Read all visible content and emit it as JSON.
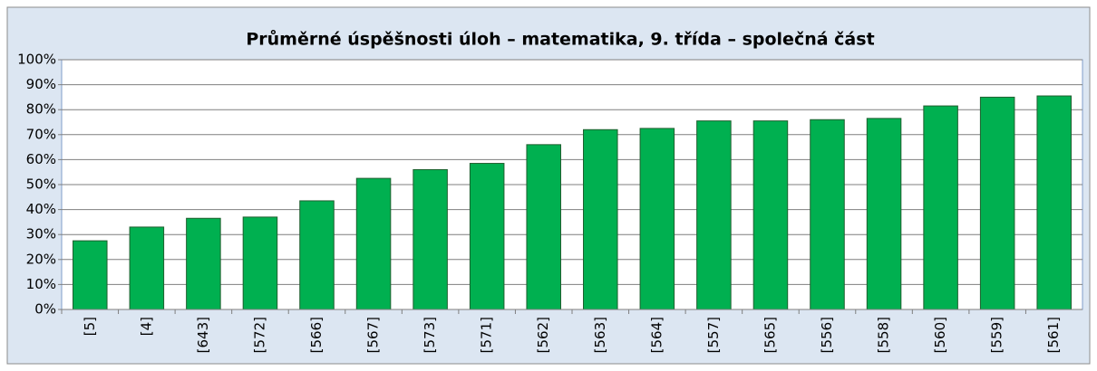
{
  "chart_data": {
    "type": "bar",
    "title": "Průměrné úspěšnosti úloh – matematika, 9. třída – společná část",
    "categories": [
      "[5]",
      "[4]",
      "[643]",
      "[572]",
      "[566]",
      "[567]",
      "[573]",
      "[571]",
      "[562]",
      "[563]",
      "[564]",
      "[557]",
      "[565]",
      "[556]",
      "[558]",
      "[560]",
      "[559]",
      "[561]"
    ],
    "values": [
      27.5,
      33,
      36.5,
      37,
      43.5,
      52.5,
      56,
      58.5,
      66,
      72,
      72.5,
      75.5,
      75.5,
      76,
      76.5,
      81.5,
      85,
      85.5
    ],
    "color": "#00b050",
    "ylim": [
      0,
      100
    ],
    "yticks": [
      {
        "value": 0,
        "label": "0%"
      },
      {
        "value": 10,
        "label": "10%"
      },
      {
        "value": 20,
        "label": "20%"
      },
      {
        "value": 30,
        "label": "30%"
      },
      {
        "value": 40,
        "label": "40%"
      },
      {
        "value": 50,
        "label": "50%"
      },
      {
        "value": 60,
        "label": "60%"
      },
      {
        "value": 70,
        "label": "70%"
      },
      {
        "value": 80,
        "label": "80%"
      },
      {
        "value": 90,
        "label": "90%"
      },
      {
        "value": 100,
        "label": "100%"
      }
    ],
    "grid": true
  }
}
